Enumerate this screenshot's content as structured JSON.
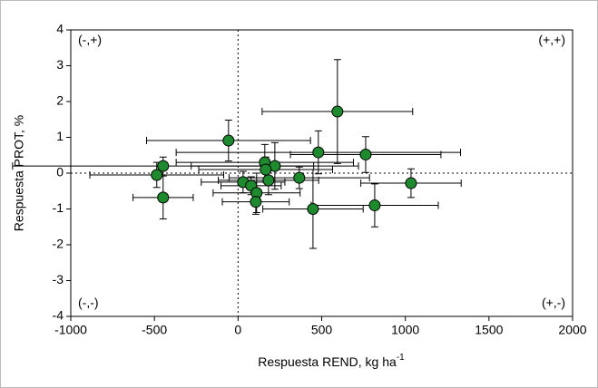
{
  "chart_data": {
    "type": "scatter",
    "x_label": "Respuesta REND, kg ha",
    "x_label_sup": "-1",
    "y_label": "Respuesta PROT, %",
    "quadrant_labels": [
      "(-,+)",
      "(+,+)",
      "(-,-)",
      "(+,-)"
    ],
    "xlim": [
      -1000,
      2000
    ],
    "xticks": [
      -1000,
      -500,
      0,
      500,
      1000,
      1500,
      2000
    ],
    "ylim": [
      -4,
      4
    ],
    "yticks": [
      -4,
      -3,
      -2,
      -1,
      0,
      1,
      2,
      3,
      4
    ],
    "reference_lines": {
      "x": 0,
      "y": 0
    },
    "series": [
      {
        "color": "#1e8a2e",
        "x": [
          594,
          -57,
          480,
          763,
          160,
          220,
          165,
          -448,
          -486,
          366,
          182,
          1034,
          30,
          78,
          111,
          -448,
          106,
          448,
          817
        ],
        "values": [
          1.72,
          0.91,
          0.58,
          0.52,
          0.3,
          0.2,
          0.1,
          0.2,
          -0.05,
          -0.13,
          -0.2,
          -0.28,
          -0.25,
          -0.35,
          -0.55,
          -0.68,
          -0.8,
          -1.0,
          -0.9
        ],
        "x_err": [
          450,
          490,
          850,
          450,
          530,
          500,
          400,
          900,
          400,
          420,
          300,
          300,
          250,
          180,
          260,
          180,
          200,
          300,
          380
        ],
        "y_err": [
          1.45,
          0.57,
          0.6,
          0.5,
          0.5,
          0.65,
          0.35,
          0.25,
          0.35,
          0.3,
          0.4,
          0.4,
          0.3,
          0.25,
          0.55,
          0.6,
          0.35,
          1.1,
          0.6
        ]
      }
    ]
  }
}
